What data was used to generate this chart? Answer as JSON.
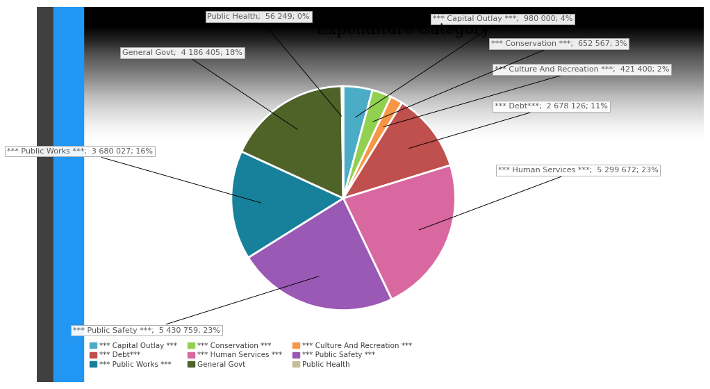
{
  "title": "Expenditure Category",
  "categories": [
    "*** Capital Outlay ***",
    "*** Conservation ***",
    "*** Culture And Recreation ***",
    "*** Debt***",
    "*** Human Services ***",
    "*** Public Safety ***",
    "*** Public Works ***",
    "General Govt",
    "Public Health"
  ],
  "values": [
    980000,
    652567,
    421400,
    2678126,
    5299672,
    5430759,
    3680027,
    4186405,
    56249
  ],
  "colors": [
    "#4BACC6",
    "#92D050",
    "#F79646",
    "#C0504D",
    "#D967A0",
    "#9B59B6",
    "#17819C",
    "#4F6228",
    "#C4BD97"
  ],
  "label_texts": [
    "*** Capital Outlay ***;  980 000; 4%",
    "*** Conservation ***;  652 567; 3%",
    "*** Culture And Recreation ***;  421 400; 2%",
    "*** Debt***;  2 678 126; 11%",
    "*** Human Services ***;  5 299 672; 23%",
    "*** Public Safety ***;  5 430 759; 23%",
    "*** Public Works ***;  3 680 027; 16%",
    "General Govt;  4 186 405; 18%",
    "Public Health;  56 249; 0%"
  ],
  "legend_order": [
    "*** Capital Outlay ***",
    "*** Debt***",
    "*** Public Works ***",
    "*** Conservation ***",
    "*** Human Services ***",
    "General Govt",
    "*** Culture And Recreation ***",
    "*** Public Safety ***",
    "Public Health"
  ],
  "legend_colors": [
    "#4BACC6",
    "#C0504D",
    "#17819C",
    "#92D050",
    "#D967A0",
    "#4F6228",
    "#F79646",
    "#9B59B6",
    "#C4BD97"
  ],
  "background_color_top": "#C8C8C8",
  "background_color_bottom": "#E8E8E8",
  "title_fontsize": 16,
  "label_fontsize": 8,
  "label_font_color": "#595959"
}
